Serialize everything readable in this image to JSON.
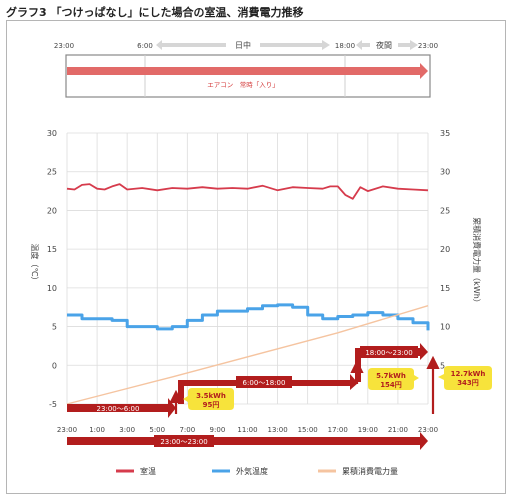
{
  "title": "グラフ3 「つけっぱなし」にした場合の室温、消費電力推移",
  "timeline": {
    "ticks": [
      "23:00",
      "6:00",
      "18:00",
      "23:00"
    ],
    "day_label": "日中",
    "night_label": "夜間",
    "ac_label": "エアコン　常時「入り」"
  },
  "chart_data": {
    "type": "line",
    "x_ticks": [
      "23:00",
      "1:00",
      "3:00",
      "5:00",
      "7:00",
      "9:00",
      "11:00",
      "13:00",
      "15:00",
      "17:00",
      "19:00",
      "21:00",
      "23:00"
    ],
    "ylabel_left": "温度（℃）",
    "ylabel_right": "累積消費電力量（kWh）",
    "ylim_left": [
      -5,
      30
    ],
    "ylim_right": [
      0,
      35
    ],
    "left_ticks": [
      "30",
      "25",
      "20",
      "15",
      "10",
      "5",
      "0",
      "-5"
    ],
    "right_ticks": [
      "35",
      "30",
      "25",
      "20",
      "15",
      "10",
      "5"
    ],
    "grid": true,
    "legend_position": "bottom",
    "series": [
      {
        "name": "室温",
        "axis": "left",
        "color": "#d63b4c",
        "x": [
          0,
          0.5,
          1,
          1.5,
          2,
          2.5,
          3,
          3.5,
          4,
          5,
          6,
          7,
          8,
          9,
          10,
          11,
          12,
          13,
          14,
          15,
          16,
          17,
          17.5,
          18,
          18.5,
          19,
          19.5,
          20,
          21,
          22,
          23,
          24
        ],
        "values": [
          22.8,
          22.7,
          23.3,
          23.4,
          22.8,
          22.7,
          23.1,
          23.4,
          22.7,
          22.9,
          22.6,
          22.9,
          22.8,
          23.0,
          22.8,
          22.9,
          22.8,
          23.2,
          22.6,
          23.0,
          22.9,
          22.8,
          23.1,
          23.1,
          22.0,
          21.5,
          23.0,
          22.5,
          23.1,
          22.8,
          22.7,
          22.6
        ]
      },
      {
        "name": "外気温度",
        "axis": "left",
        "color": "#4aa3e8",
        "x": [
          0,
          1,
          2,
          3,
          4,
          5,
          6,
          7,
          8,
          9,
          10,
          11,
          12,
          13,
          14,
          15,
          16,
          17,
          18,
          19,
          20,
          21,
          22,
          23,
          24
        ],
        "values": [
          6.5,
          6.0,
          6.0,
          5.8,
          5.0,
          5.0,
          4.7,
          5.0,
          5.8,
          6.5,
          7.0,
          7.0,
          7.3,
          7.7,
          7.8,
          7.5,
          6.5,
          6.0,
          6.3,
          6.5,
          6.8,
          6.5,
          6.0,
          5.5,
          4.5
        ]
      },
      {
        "name": "累積消費電力量",
        "axis": "right",
        "color": "#f5c4a0",
        "x": [
          0,
          7,
          18,
          24
        ],
        "values": [
          0,
          3.5,
          9.2,
          12.7
        ]
      }
    ],
    "annotations": {
      "periods": [
        {
          "label": "23:00〜6:00",
          "start": 0,
          "end": 7
        },
        {
          "label": "6:00〜18:00",
          "start": 7,
          "end": 19
        },
        {
          "label": "18:00〜23:00",
          "start": 19,
          "end": 24
        },
        {
          "label": "23:00〜23:00",
          "start": 0,
          "end": 24
        }
      ],
      "callouts": [
        {
          "kwh": "3.5kWh",
          "yen": "95円",
          "x": 7
        },
        {
          "kwh": "5.7kWh",
          "yen": "154円",
          "x": 19
        },
        {
          "kwh": "12.7kWh",
          "yen": "343円",
          "x": 24
        }
      ]
    }
  }
}
